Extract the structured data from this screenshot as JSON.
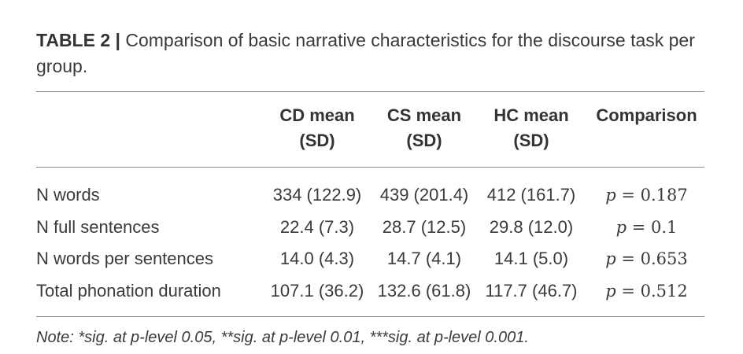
{
  "caption": {
    "label": "TABLE 2",
    "separator": "|",
    "text": "Comparison of basic narrative characteristics for the discourse task per group."
  },
  "table": {
    "columns": [
      {
        "line1": "CD mean",
        "line2": "(SD)"
      },
      {
        "line1": "CS mean",
        "line2": "(SD)"
      },
      {
        "line1": "HC mean",
        "line2": "(SD)"
      },
      {
        "line1": "Comparison",
        "line2": ""
      }
    ],
    "rows": [
      {
        "label": "N words",
        "cd": "334 (122.9)",
        "cs": "439 (201.4)",
        "hc": "412 (161.7)",
        "cmp_p": "p",
        "cmp_eq": " = 0.187"
      },
      {
        "label": "N full sentences",
        "cd": "22.4 (7.3)",
        "cs": "28.7 (12.5)",
        "hc": "29.8 (12.0)",
        "cmp_p": "p",
        "cmp_eq": " = 0.1"
      },
      {
        "label": "N words per sentences",
        "cd": "14.0 (4.3)",
        "cs": "14.7 (4.1)",
        "hc": "14.1 (5.0)",
        "cmp_p": "p",
        "cmp_eq": " = 0.653"
      },
      {
        "label": "Total phonation duration",
        "cd": "107.1 (36.2)",
        "cs": "132.6 (61.8)",
        "hc": "117.7 (46.7)",
        "cmp_p": "p",
        "cmp_eq": " = 0.512"
      }
    ]
  },
  "note": "Note: *sig. at p-level 0.05, **sig. at p-level 0.01, ***sig. at p-level 0.001."
}
